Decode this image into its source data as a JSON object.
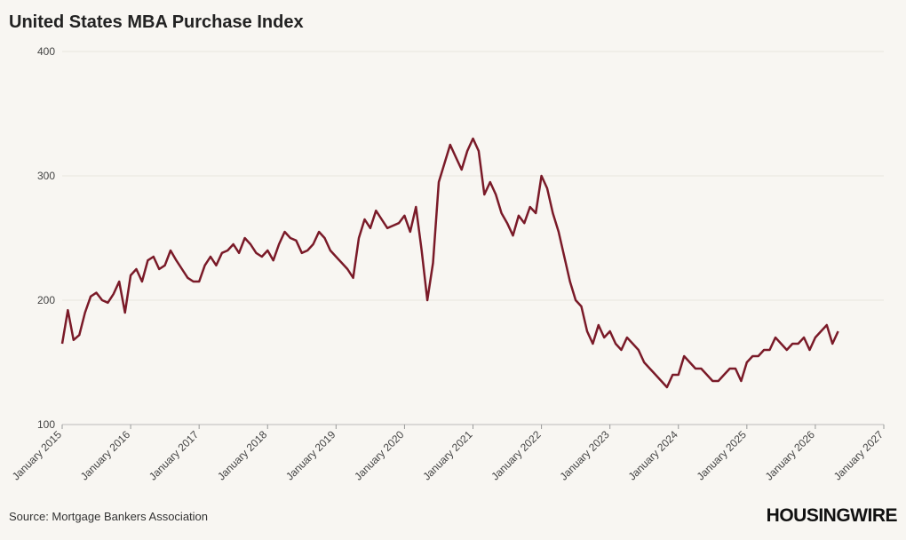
{
  "chart_data": {
    "type": "line",
    "title": "United States MBA Purchase Index",
    "source": "Source: Mortgage Bankers Association",
    "brand": "HOUSINGWIRE",
    "x": [
      "2015-01",
      "2015-02",
      "2015-03",
      "2015-04",
      "2015-05",
      "2015-06",
      "2015-07",
      "2015-08",
      "2015-09",
      "2015-10",
      "2015-11",
      "2015-12",
      "2016-01",
      "2016-02",
      "2016-03",
      "2016-04",
      "2016-05",
      "2016-06",
      "2016-07",
      "2016-08",
      "2016-09",
      "2016-10",
      "2016-11",
      "2016-12",
      "2017-01",
      "2017-02",
      "2017-03",
      "2017-04",
      "2017-05",
      "2017-06",
      "2017-07",
      "2017-08",
      "2017-09",
      "2017-10",
      "2017-11",
      "2017-12",
      "2018-01",
      "2018-02",
      "2018-03",
      "2018-04",
      "2018-05",
      "2018-06",
      "2018-07",
      "2018-08",
      "2018-09",
      "2018-10",
      "2018-11",
      "2018-12",
      "2019-01",
      "2019-02",
      "2019-03",
      "2019-04",
      "2019-05",
      "2019-06",
      "2019-07",
      "2019-08",
      "2019-09",
      "2019-10",
      "2019-11",
      "2019-12",
      "2020-01",
      "2020-02",
      "2020-03",
      "2020-04",
      "2020-05",
      "2020-06",
      "2020-07",
      "2020-08",
      "2020-09",
      "2020-10",
      "2020-11",
      "2020-12",
      "2021-01",
      "2021-02",
      "2021-03",
      "2021-04",
      "2021-05",
      "2021-06",
      "2021-07",
      "2021-08",
      "2021-09",
      "2021-10",
      "2021-11",
      "2021-12",
      "2022-01",
      "2022-02",
      "2022-03",
      "2022-04",
      "2022-05",
      "2022-06",
      "2022-07",
      "2022-08",
      "2022-09",
      "2022-10",
      "2022-11",
      "2022-12",
      "2023-01",
      "2023-02",
      "2023-03",
      "2023-04",
      "2023-05",
      "2023-06",
      "2023-07",
      "2023-08",
      "2023-09",
      "2023-10",
      "2023-11",
      "2023-12",
      "2024-01",
      "2024-02",
      "2024-03",
      "2024-04",
      "2024-05",
      "2024-06",
      "2024-07",
      "2024-08",
      "2024-09",
      "2024-10",
      "2024-11",
      "2024-12",
      "2025-01",
      "2025-02",
      "2025-03",
      "2025-04",
      "2025-05",
      "2025-06",
      "2025-07",
      "2025-08",
      "2025-09",
      "2025-10",
      "2025-11",
      "2025-12",
      "2026-01",
      "2026-02",
      "2026-03",
      "2026-04",
      "2026-05"
    ],
    "series": [
      {
        "name": "MBA Purchase Index",
        "color": "#7a1a28",
        "values": [
          165,
          192,
          168,
          172,
          190,
          203,
          206,
          200,
          198,
          205,
          215,
          190,
          220,
          225,
          215,
          232,
          235,
          225,
          228,
          240,
          232,
          225,
          218,
          215,
          215,
          228,
          235,
          228,
          238,
          240,
          245,
          238,
          250,
          245,
          238,
          235,
          240,
          232,
          245,
          255,
          250,
          248,
          238,
          240,
          245,
          255,
          250,
          240,
          235,
          230,
          225,
          218,
          250,
          265,
          258,
          272,
          265,
          258,
          260,
          262,
          268,
          255,
          275,
          240,
          200,
          230,
          295,
          310,
          325,
          315,
          305,
          320,
          330,
          320,
          285,
          295,
          285,
          270,
          262,
          252,
          268,
          262,
          275,
          270,
          300,
          290,
          270,
          255,
          235,
          215,
          200,
          195,
          175,
          165,
          180,
          170,
          175,
          165,
          160,
          170,
          165,
          160,
          150,
          145,
          140,
          135,
          130,
          140,
          140,
          155,
          150,
          145,
          145,
          140,
          135,
          135,
          140,
          145,
          145,
          135,
          150,
          155,
          155,
          160,
          160,
          170,
          165,
          160,
          165,
          165,
          170,
          160,
          170,
          175,
          180,
          165,
          175
        ]
      }
    ],
    "xlim": [
      "2015-01",
      "2027-01"
    ],
    "xticks": [
      {
        "value": "2015-01",
        "label": "January 2015"
      },
      {
        "value": "2016-01",
        "label": "January 2016"
      },
      {
        "value": "2017-01",
        "label": "January 2017"
      },
      {
        "value": "2018-01",
        "label": "January 2018"
      },
      {
        "value": "2019-01",
        "label": "January 2019"
      },
      {
        "value": "2020-01",
        "label": "January 2020"
      },
      {
        "value": "2021-01",
        "label": "January 2021"
      },
      {
        "value": "2022-01",
        "label": "January 2022"
      },
      {
        "value": "2023-01",
        "label": "January 2023"
      },
      {
        "value": "2024-01",
        "label": "January 2024"
      },
      {
        "value": "2025-01",
        "label": "January 2025"
      },
      {
        "value": "2026-01",
        "label": "January 2026"
      },
      {
        "value": "2027-01",
        "label": "January 2027"
      }
    ],
    "ylim": [
      100,
      400
    ],
    "yticks": [
      100,
      200,
      300,
      400
    ],
    "grid": true
  }
}
